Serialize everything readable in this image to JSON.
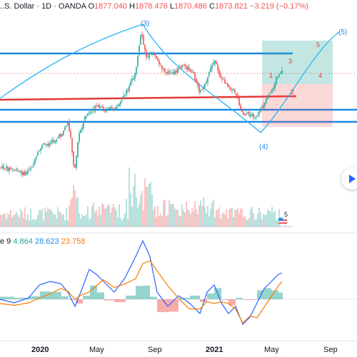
{
  "header": {
    "symbol_title": "..S. Dollar · 1D · OANDA",
    "o_key": "O",
    "o_val": "1877.040",
    "h_key": "H",
    "h_val": "1878.476",
    "l_key": "L",
    "l_val": "1870.486",
    "c_key": "C",
    "c_val": "1873.821",
    "change": "−3.219 (−0.17%)"
  },
  "indicator": {
    "name": "e 9",
    "value1": "4.864",
    "value2": "28.623",
    "value3": "23.758"
  },
  "wave_labels": {
    "w3": "(3)",
    "w4": "(4)",
    "w5": "(5)",
    "n1": "1",
    "n2": "2",
    "n3": "3",
    "n4": "4",
    "n5": "5",
    "vol5": "5"
  },
  "x_axis": {
    "labels": [
      "2020",
      "May",
      "Sep",
      "2021",
      "May",
      "Sep"
    ]
  },
  "colors": {
    "up": "#26a69a",
    "down": "#ef5350",
    "blue_line": "#1e88e5",
    "red_line": "#e53935",
    "macd": "#2962ff",
    "signal": "#f57c00",
    "curve": "#29b6f6"
  },
  "icons": {
    "nav": "chevron-right-icon",
    "flag": "us-flag-icon"
  },
  "chart_data": {
    "type": "candlestick",
    "y_range": [
      1450,
      2100
    ],
    "last_close": 1873.821
  }
}
